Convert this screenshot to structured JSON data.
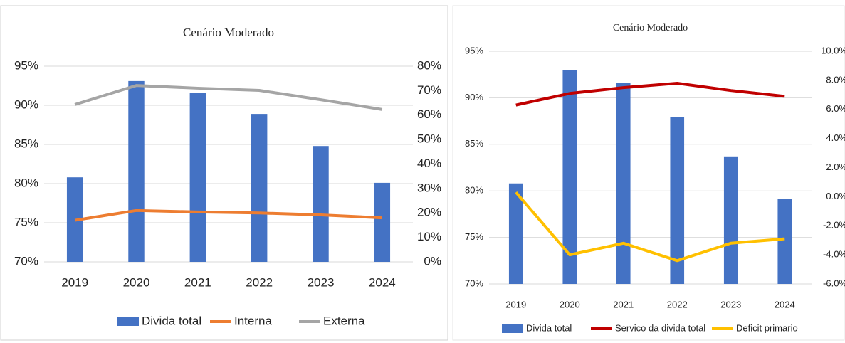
{
  "chart_data": [
    {
      "type": "combo",
      "title": "Cenário Moderado",
      "categories": [
        "2019",
        "2020",
        "2021",
        "2022",
        "2023",
        "2024"
      ],
      "series": [
        {
          "name": "Divida total",
          "type": "bar",
          "color": "#4472c4",
          "values": [
            80.8,
            93.1,
            91.6,
            88.9,
            84.8,
            80.1
          ]
        },
        {
          "name": "Interna",
          "type": "line",
          "axis": "y2",
          "color": "#ed7d31",
          "values": [
            17,
            21,
            20.4,
            20,
            19.2,
            18
          ]
        },
        {
          "name": "Externa",
          "type": "line",
          "axis": "y2",
          "color": "#a5a5a5",
          "values": [
            64.3,
            72.1,
            71,
            70.1,
            66.3,
            62.3
          ]
        }
      ],
      "ylim": [
        70,
        95
      ],
      "yticks": [
        {
          "value": 70,
          "label": "70%"
        },
        {
          "value": 75,
          "label": "75%"
        },
        {
          "value": 80,
          "label": "80%"
        },
        {
          "value": 85,
          "label": "85%"
        },
        {
          "value": 90,
          "label": "90%"
        },
        {
          "value": 95,
          "label": "95%"
        }
      ],
      "y2lim": [
        0,
        80
      ],
      "y2ticks": [
        {
          "value": 0,
          "label": "0%"
        },
        {
          "value": 10,
          "label": "10%"
        },
        {
          "value": 20,
          "label": "20%"
        },
        {
          "value": 30,
          "label": "30%"
        },
        {
          "value": 40,
          "label": "40%"
        },
        {
          "value": 50,
          "label": "50%"
        },
        {
          "value": 60,
          "label": "60%"
        },
        {
          "value": 70,
          "label": "70%"
        },
        {
          "value": 80,
          "label": "80%"
        }
      ],
      "grid": true,
      "legend": "bottom"
    },
    {
      "type": "combo",
      "title": "Cenário Moderado",
      "categories": [
        "2019",
        "2020",
        "2021",
        "2022",
        "2023",
        "2024"
      ],
      "series": [
        {
          "name": "Divida total",
          "type": "bar",
          "color": "#4472c4",
          "values": [
            80.8,
            93.0,
            91.6,
            87.9,
            83.7,
            79.1
          ]
        },
        {
          "name": "Servico da divida total",
          "type": "line",
          "axis": "y2",
          "color": "#c00000",
          "values": [
            6.3,
            7.1,
            7.5,
            7.8,
            7.3,
            6.9
          ]
        },
        {
          "name": "Deficit primario",
          "type": "line",
          "axis": "y2",
          "color": "#ffc000",
          "values": [
            0.3,
            -4.0,
            -3.2,
            -4.4,
            -3.2,
            -2.9
          ]
        }
      ],
      "ylim": [
        70,
        95
      ],
      "yticks": [
        {
          "value": 70,
          "label": "70%"
        },
        {
          "value": 75,
          "label": "75%"
        },
        {
          "value": 80,
          "label": "80%"
        },
        {
          "value": 85,
          "label": "85%"
        },
        {
          "value": 90,
          "label": "90%"
        },
        {
          "value": 95,
          "label": "95%"
        }
      ],
      "y2lim": [
        -6,
        10
      ],
      "y2ticks": [
        {
          "value": -6,
          "label": "-6.0%"
        },
        {
          "value": -4,
          "label": "-4.0%"
        },
        {
          "value": -2,
          "label": "-2.0%"
        },
        {
          "value": 0,
          "label": "0.0%"
        },
        {
          "value": 2,
          "label": "2.0%"
        },
        {
          "value": 4,
          "label": "4.0%"
        },
        {
          "value": 6,
          "label": "6.0%"
        },
        {
          "value": 8,
          "label": "8.0%"
        },
        {
          "value": 10,
          "label": "10.0%"
        }
      ],
      "grid": true,
      "legend": "bottom"
    }
  ]
}
